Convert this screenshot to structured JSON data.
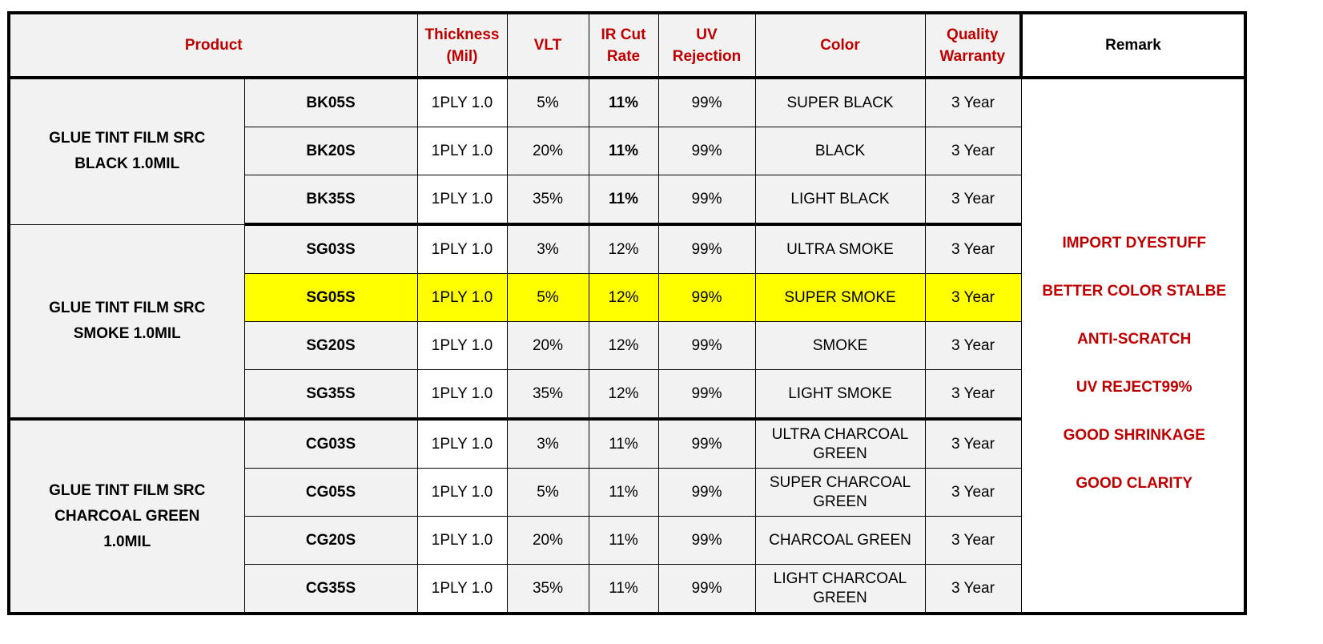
{
  "headers": {
    "product": "Product",
    "thickness_line1": "Thickness",
    "thickness_line2": "(Mil)",
    "vlt": "VLT",
    "ir_line1": "IR Cut",
    "ir_line2": "Rate",
    "uv_line1": "UV",
    "uv_line2": "Rejection",
    "color": "Color",
    "warranty_line1": "Quality",
    "warranty_line2": "Warranty",
    "remark": "Remark"
  },
  "groups": [
    {
      "line1": "GLUE TINT FILM SRC",
      "line2": "BLACK 1.0MIL",
      "line3": ""
    },
    {
      "line1": "GLUE TINT FILM SRC",
      "line2": "SMOKE 1.0MIL",
      "line3": ""
    },
    {
      "line1": "GLUE TINT FILM SRC",
      "line2": "CHARCOAL GREEN",
      "line3": "1.0MIL"
    }
  ],
  "rows": [
    {
      "code": "BK05S",
      "thickness": "1PLY 1.0",
      "vlt": "5%",
      "ir": "11%",
      "uv": "99%",
      "color1": "SUPER BLACK",
      "color2": "",
      "warranty": "3 Year"
    },
    {
      "code": "BK20S",
      "thickness": "1PLY 1.0",
      "vlt": "20%",
      "ir": "11%",
      "uv": "99%",
      "color1": "BLACK",
      "color2": "",
      "warranty": "3 Year"
    },
    {
      "code": "BK35S",
      "thickness": "1PLY 1.0",
      "vlt": "35%",
      "ir": "11%",
      "uv": "99%",
      "color1": "LIGHT BLACK",
      "color2": "",
      "warranty": "3 Year"
    },
    {
      "code": "SG03S",
      "thickness": "1PLY 1.0",
      "vlt": "3%",
      "ir": "12%",
      "uv": "99%",
      "color1": "ULTRA SMOKE",
      "color2": "",
      "warranty": "3 Year"
    },
    {
      "code": "SG05S",
      "thickness": "1PLY 1.0",
      "vlt": "5%",
      "ir": "12%",
      "uv": "99%",
      "color1": "SUPER SMOKE",
      "color2": "",
      "warranty": "3 Year"
    },
    {
      "code": "SG20S",
      "thickness": "1PLY 1.0",
      "vlt": "20%",
      "ir": "12%",
      "uv": "99%",
      "color1": "SMOKE",
      "color2": "",
      "warranty": "3 Year"
    },
    {
      "code": "SG35S",
      "thickness": "1PLY 1.0",
      "vlt": "35%",
      "ir": "12%",
      "uv": "99%",
      "color1": "LIGHT SMOKE",
      "color2": "",
      "warranty": "3 Year"
    },
    {
      "code": "CG03S",
      "thickness": "1PLY 1.0",
      "vlt": "3%",
      "ir": "11%",
      "uv": "99%",
      "color1": "ULTRA CHARCOAL",
      "color2": "GREEN",
      "warranty": "3 Year"
    },
    {
      "code": "CG05S",
      "thickness": "1PLY 1.0",
      "vlt": "5%",
      "ir": "11%",
      "uv": "99%",
      "color1": "SUPER CHARCOAL",
      "color2": "GREEN",
      "warranty": "3 Year"
    },
    {
      "code": "CG20S",
      "thickness": "1PLY 1.0",
      "vlt": "20%",
      "ir": "11%",
      "uv": "99%",
      "color1": "CHARCOAL GREEN",
      "color2": "",
      "warranty": "3 Year"
    },
    {
      "code": "CG35S",
      "thickness": "1PLY 1.0",
      "vlt": "35%",
      "ir": "11%",
      "uv": "99%",
      "color1": "LIGHT CHARCOAL",
      "color2": "GREEN",
      "warranty": "3 Year"
    }
  ],
  "remarks": [
    "IMPORT DYESTUFF",
    "BETTER COLOR STALBE",
    "ANTI-SCRATCH",
    "UV REJECT99%",
    "GOOD SHRINKAGE",
    "GOOD CLARITY"
  ],
  "colors": {
    "header_text": "#c00000",
    "group_text": "#e00000",
    "highlight_row": "#ffff00",
    "ir_black_group_text": "#a0331a"
  }
}
